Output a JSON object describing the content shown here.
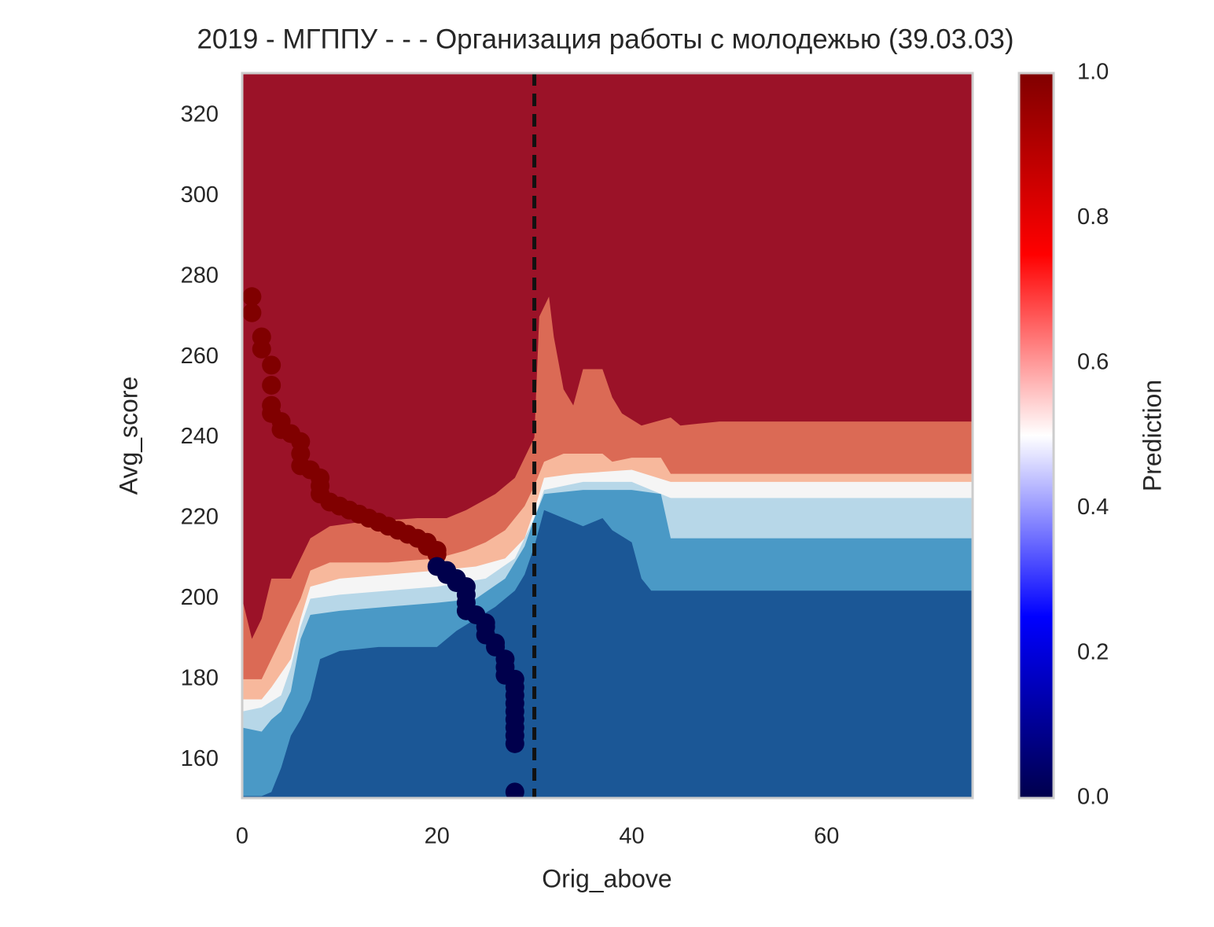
{
  "chart_data": {
    "type": "contour",
    "title": "2019 - МГППУ - - - Организация работы с молодежью (39.03.03)",
    "x_label": "Orig_above",
    "y_label": "Avg_score",
    "xlim": [
      0,
      75
    ],
    "ylim": [
      150.5,
      330.5
    ],
    "xticks": [
      0,
      20,
      40,
      60
    ],
    "yticks": [
      160,
      180,
      200,
      220,
      240,
      260,
      280,
      300,
      320
    ],
    "background_color": "#9b1228",
    "regions": [
      {
        "color": "#db6a55",
        "x": [
          0,
          1,
          2,
          3,
          5,
          7,
          9,
          12,
          18,
          21,
          23,
          26,
          28,
          29,
          30,
          30.5,
          31.5,
          32,
          33,
          34,
          35,
          37,
          38,
          39,
          41,
          44,
          45,
          49,
          75
        ],
        "y": [
          200,
          190,
          195,
          205,
          205,
          215,
          218,
          219,
          220,
          220,
          222,
          226,
          230,
          235,
          240,
          270,
          275,
          265,
          252,
          248,
          257,
          257,
          250,
          246,
          243,
          245,
          243,
          244,
          244
        ]
      },
      {
        "color": "#f7b89c",
        "x": [
          0,
          2,
          3,
          4,
          5,
          6,
          7,
          9,
          15,
          20,
          23,
          25,
          27,
          29,
          30,
          31,
          33,
          37,
          38,
          40,
          43,
          44,
          75
        ],
        "y": [
          180,
          180,
          185,
          190,
          195,
          200,
          207,
          209,
          209,
          210,
          212,
          214,
          217,
          223,
          228,
          234,
          236,
          236,
          234,
          235,
          235,
          231,
          231
        ]
      },
      {
        "color": "#f5f5f5",
        "x": [
          0,
          2,
          3,
          5,
          6,
          7,
          10,
          20,
          24,
          27,
          29,
          30,
          31,
          34,
          40,
          44,
          75
        ],
        "y": [
          175,
          175,
          178,
          185,
          195,
          203,
          205,
          207,
          208,
          210,
          215,
          222,
          230,
          231,
          232,
          229,
          229
        ]
      },
      {
        "color": "#b7d7e8",
        "x": [
          0,
          2,
          4,
          5,
          6,
          7,
          10,
          20,
          25,
          28,
          30,
          31,
          35,
          40,
          44,
          75
        ],
        "y": [
          172,
          173,
          176,
          183,
          193,
          200,
          201,
          203,
          205,
          210,
          220,
          227,
          229,
          229,
          225,
          225
        ]
      },
      {
        "color": "#4a99c6",
        "x": [
          0,
          2,
          3,
          4,
          5,
          6,
          7,
          10,
          20,
          24,
          27,
          29,
          30,
          31,
          35,
          40,
          43,
          44,
          75
        ],
        "y": [
          168,
          167,
          170,
          172,
          177,
          190,
          196,
          197,
          199,
          200,
          205,
          213,
          220,
          226,
          227,
          227,
          226,
          215,
          215
        ]
      },
      {
        "color": "#1b5796",
        "x": [
          0,
          2,
          3,
          4,
          5,
          6,
          7,
          8,
          10,
          14,
          20,
          22,
          24,
          26,
          28,
          29,
          30,
          31,
          33,
          35,
          37,
          38,
          40,
          41,
          42,
          75
        ],
        "y": [
          151,
          151,
          152,
          158,
          166,
          170,
          175,
          185,
          187,
          188,
          188,
          192,
          195,
          198,
          202,
          206,
          213,
          222,
          220,
          218,
          220,
          217,
          214,
          205,
          202,
          202
        ]
      }
    ],
    "series": [
      {
        "color": "#800000",
        "x": [
          1,
          1,
          2,
          2,
          3,
          3,
          3,
          3,
          4,
          4,
          5,
          6,
          6,
          6,
          7,
          8,
          8,
          8,
          9,
          10,
          11,
          12,
          13,
          14,
          15,
          16,
          17,
          18,
          19,
          19,
          20,
          20
        ],
        "y": [
          275,
          271,
          265,
          262,
          258,
          253,
          248,
          246,
          244,
          242,
          241,
          239,
          236,
          233,
          232,
          230,
          228,
          226,
          224,
          223,
          222,
          221,
          220,
          219,
          218,
          217,
          216,
          215,
          214,
          213,
          212,
          211
        ]
      },
      {
        "color": "#00004c",
        "x": [
          20,
          21,
          21,
          22,
          22,
          23,
          23,
          23,
          23,
          24,
          25,
          25,
          25,
          26,
          26,
          27,
          27,
          27,
          28,
          28,
          28,
          28,
          28,
          28,
          28,
          28,
          28,
          28
        ],
        "y": [
          208,
          207,
          206,
          205,
          204,
          203,
          201,
          199,
          197,
          196,
          194,
          193,
          191,
          189,
          188,
          185,
          183,
          181,
          180,
          178,
          176,
          174,
          172,
          170,
          168,
          166,
          164,
          152
        ]
      }
    ],
    "vline": 30,
    "colorbar": {
      "label": "Prediction",
      "lim": [
        0,
        1
      ],
      "ticks": [
        {
          "value": 0,
          "label": "0.0"
        },
        0.2,
        0.4,
        0.6,
        0.8,
        {
          "value": 1,
          "label": "1.0"
        }
      ],
      "colors": [
        "#00004c",
        "#0000ff",
        "#ffffff",
        "#ff0000",
        "#800000"
      ]
    }
  }
}
